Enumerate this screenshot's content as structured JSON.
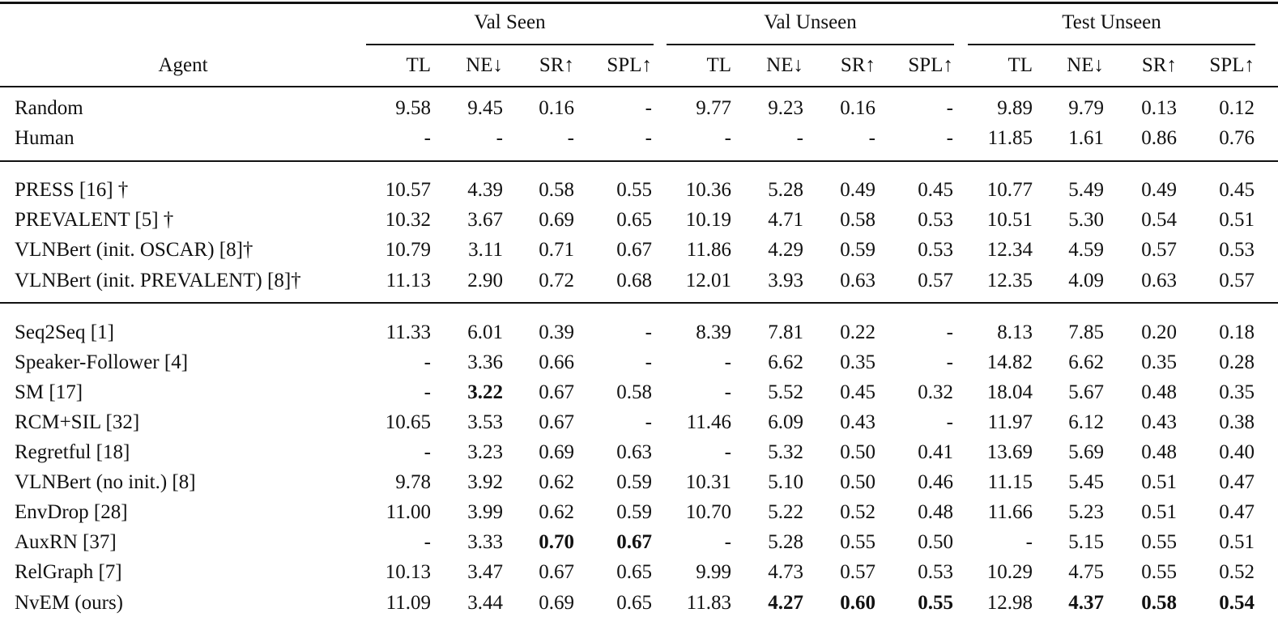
{
  "table": {
    "agent_header": "Agent",
    "groups": [
      {
        "name": "Val Seen",
        "columns": [
          "TL",
          "NE↓",
          "SR↑",
          "SPL↑"
        ]
      },
      {
        "name": "Val Unseen",
        "columns": [
          "TL",
          "NE↓",
          "SR↑",
          "SPL↑"
        ]
      },
      {
        "name": "Test Unseen",
        "columns": [
          "TL",
          "NE↓",
          "SR↑",
          "SPL↑"
        ]
      }
    ],
    "sections": [
      [
        {
          "agent": "Random",
          "cells": [
            "9.58",
            "9.45",
            "0.16",
            "-",
            "9.77",
            "9.23",
            "0.16",
            "-",
            "9.89",
            "9.79",
            "0.13",
            "0.12"
          ]
        },
        {
          "agent": "Human",
          "cells": [
            "-",
            "-",
            "-",
            "-",
            "-",
            "-",
            "-",
            "-",
            "11.85",
            "1.61",
            "0.86",
            "0.76"
          ]
        }
      ],
      [
        {
          "agent": "PRESS [16] †",
          "cells": [
            "10.57",
            "4.39",
            "0.58",
            "0.55",
            "10.36",
            "5.28",
            "0.49",
            "0.45",
            "10.77",
            "5.49",
            "0.49",
            "0.45"
          ]
        },
        {
          "agent": "PREVALENT [5] †",
          "cells": [
            "10.32",
            "3.67",
            "0.69",
            "0.65",
            "10.19",
            "4.71",
            "0.58",
            "0.53",
            "10.51",
            "5.30",
            "0.54",
            "0.51"
          ]
        },
        {
          "agent": "VLNBert (init. OSCAR) [8]†",
          "cells": [
            "10.79",
            "3.11",
            "0.71",
            "0.67",
            "11.86",
            "4.29",
            "0.59",
            "0.53",
            "12.34",
            "4.59",
            "0.57",
            "0.53"
          ]
        },
        {
          "agent": "VLNBert (init. PREVALENT) [8]†",
          "cells": [
            "11.13",
            "2.90",
            "0.72",
            "0.68",
            "12.01",
            "3.93",
            "0.63",
            "0.57",
            "12.35",
            "4.09",
            "0.63",
            "0.57"
          ]
        }
      ],
      [
        {
          "agent": "Seq2Seq [1]",
          "cells": [
            "11.33",
            "6.01",
            "0.39",
            "-",
            "8.39",
            "7.81",
            "0.22",
            "-",
            "8.13",
            "7.85",
            "0.20",
            "0.18"
          ]
        },
        {
          "agent": "Speaker-Follower [4]",
          "cells": [
            "-",
            "3.36",
            "0.66",
            "-",
            "-",
            "6.62",
            "0.35",
            "-",
            "14.82",
            "6.62",
            "0.35",
            "0.28"
          ]
        },
        {
          "agent": "SM [17]",
          "cells": [
            "-",
            "3.22",
            "0.67",
            "0.58",
            "-",
            "5.52",
            "0.45",
            "0.32",
            "18.04",
            "5.67",
            "0.48",
            "0.35"
          ]
        },
        {
          "agent": "RCM+SIL [32]",
          "cells": [
            "10.65",
            "3.53",
            "0.67",
            "-",
            "11.46",
            "6.09",
            "0.43",
            "-",
            "11.97",
            "6.12",
            "0.43",
            "0.38"
          ]
        },
        {
          "agent": "Regretful [18]",
          "cells": [
            "-",
            "3.23",
            "0.69",
            "0.63",
            "-",
            "5.32",
            "0.50",
            "0.41",
            "13.69",
            "5.69",
            "0.48",
            "0.40"
          ]
        },
        {
          "agent": "VLNBert (no init.) [8]",
          "cells": [
            "9.78",
            "3.92",
            "0.62",
            "0.59",
            "10.31",
            "5.10",
            "0.50",
            "0.46",
            "11.15",
            "5.45",
            "0.51",
            "0.47"
          ]
        },
        {
          "agent": "EnvDrop [28]",
          "cells": [
            "11.00",
            "3.99",
            "0.62",
            "0.59",
            "10.70",
            "5.22",
            "0.52",
            "0.48",
            "11.66",
            "5.23",
            "0.51",
            "0.47"
          ]
        },
        {
          "agent": "AuxRN [37]",
          "cells": [
            "-",
            "3.33",
            "0.70",
            "0.67",
            "-",
            "5.28",
            "0.55",
            "0.50",
            "-",
            "5.15",
            "0.55",
            "0.51"
          ]
        },
        {
          "agent": "RelGraph [7]",
          "cells": [
            "10.13",
            "3.47",
            "0.67",
            "0.65",
            "9.99",
            "4.73",
            "0.57",
            "0.53",
            "10.29",
            "4.75",
            "0.55",
            "0.52"
          ]
        },
        {
          "agent": "NvEM (ours)",
          "cells": [
            "11.09",
            "3.44",
            "0.69",
            "0.65",
            "11.83",
            "4.27",
            "0.60",
            "0.55",
            "12.98",
            "4.37",
            "0.58",
            "0.54"
          ]
        }
      ]
    ]
  }
}
